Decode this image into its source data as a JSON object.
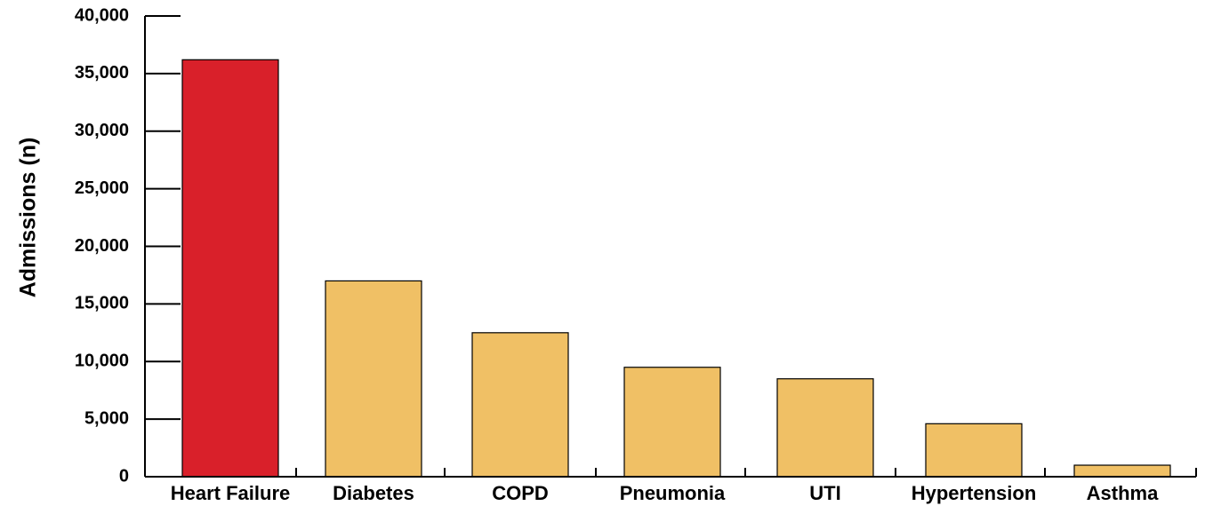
{
  "chart_data": {
    "type": "bar",
    "title": "",
    "xlabel": "",
    "ylabel": "Admissions (n)",
    "categories": [
      "Heart Failure",
      "Diabetes",
      "COPD",
      "Pneumonia",
      "UTI",
      "Hypertension",
      "Asthma"
    ],
    "values": [
      36200,
      17000,
      12500,
      9500,
      8500,
      4600,
      1000
    ],
    "ylim": [
      0,
      40000
    ],
    "yticks": [
      0,
      5000,
      10000,
      15000,
      20000,
      25000,
      30000,
      35000,
      40000
    ],
    "ytick_labels": [
      "0",
      "5,000",
      "10,000",
      "15,000",
      "20,000",
      "25,000",
      "30,000",
      "35,000",
      "40,000"
    ],
    "grid": false,
    "legend": "none",
    "colors": {
      "highlight": "#d9202a",
      "default": "#f0c065",
      "axis": "#000000"
    },
    "highlight_category": "Heart Failure"
  }
}
